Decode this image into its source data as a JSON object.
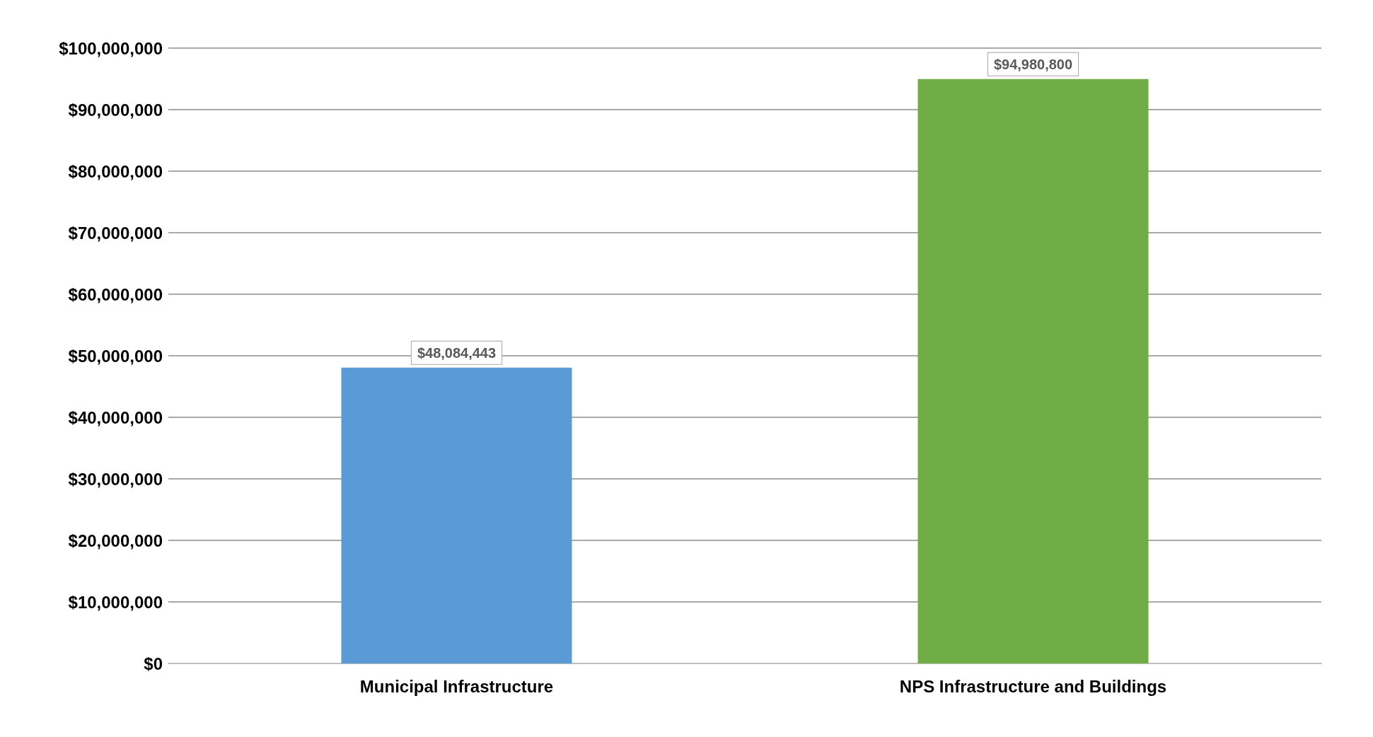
{
  "chart_data": {
    "type": "bar",
    "categories": [
      "Municipal Infrastructure",
      "NPS Infrastructure and Buildings"
    ],
    "values": [
      48084443,
      94980800
    ],
    "colors": [
      "#5b9bd5",
      "#70ad47"
    ],
    "value_labels": [
      "$48,084,443",
      "$94,980,800"
    ],
    "ylim": [
      0,
      100000000
    ],
    "yticks": [
      {
        "value": 0,
        "label": "$0"
      },
      {
        "value": 10000000,
        "label": "$10,000,000"
      },
      {
        "value": 20000000,
        "label": "$20,000,000"
      },
      {
        "value": 30000000,
        "label": "$30,000,000"
      },
      {
        "value": 40000000,
        "label": "$40,000,000"
      },
      {
        "value": 50000000,
        "label": "$50,000,000"
      },
      {
        "value": 60000000,
        "label": "$60,000,000"
      },
      {
        "value": 70000000,
        "label": "$70,000,000"
      },
      {
        "value": 80000000,
        "label": "$80,000,000"
      },
      {
        "value": 90000000,
        "label": "$90,000,000"
      },
      {
        "value": 100000000,
        "label": "$100,000,000"
      }
    ],
    "grid": true
  }
}
